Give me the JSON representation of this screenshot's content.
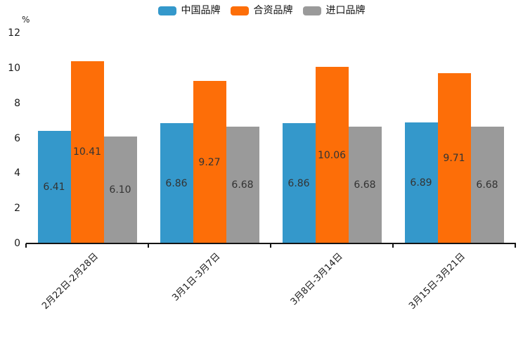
{
  "chart_data": {
    "type": "bar",
    "title": "",
    "unit_label": "%",
    "categories": [
      "2月22日-2月28日",
      "3月1日-3月7日",
      "3月8日-3月14日",
      "3月15日-3月21日"
    ],
    "series": [
      {
        "key": "china-brand",
        "name": "中国品牌",
        "color": "#3498cb",
        "values": [
          6.41,
          6.86,
          6.86,
          6.89
        ],
        "labels": [
          "6.41",
          "6.86",
          "6.86",
          "6.89"
        ]
      },
      {
        "key": "jv-brand",
        "name": "合资品牌",
        "color": "#fd6e08",
        "values": [
          10.41,
          9.27,
          10.06,
          9.71
        ],
        "labels": [
          "10.41",
          "9.27",
          "10.06",
          "9.71"
        ]
      },
      {
        "key": "import-brand",
        "name": "进口品牌",
        "color": "#9a9a9a",
        "values": [
          6.1,
          6.68,
          6.68,
          6.68
        ],
        "labels": [
          "6.10",
          "6.68",
          "6.68",
          "6.68"
        ]
      }
    ],
    "y_ticks": [
      0,
      2,
      4,
      6,
      8,
      10,
      12
    ],
    "ylim": [
      0,
      12
    ],
    "legend_position": "top",
    "grid": false,
    "value_label_position": "inside-center",
    "axis_color": "#141414"
  }
}
